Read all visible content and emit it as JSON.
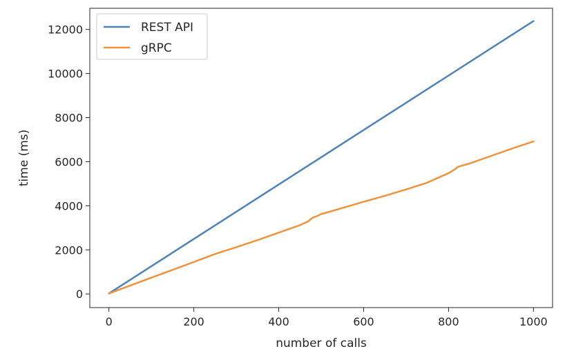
{
  "chart_data": {
    "type": "line",
    "title": "",
    "xlabel": "number of calls",
    "ylabel": "time (ms)",
    "xlim": [
      -45,
      1045
    ],
    "ylim": [
      -620,
      12960
    ],
    "xticks": [
      0,
      200,
      400,
      600,
      800,
      1000
    ],
    "yticks": [
      0,
      2000,
      4000,
      6000,
      8000,
      10000,
      12000
    ],
    "grid": false,
    "legend_position": "top-left",
    "series": [
      {
        "name": "REST API",
        "color": "#4c82b9",
        "x": [
          0,
          1000
        ],
        "y": [
          20,
          12380
        ]
      },
      {
        "name": "gRPC",
        "color": "#f0913b",
        "x": [
          0,
          50,
          100,
          150,
          200,
          250,
          300,
          350,
          400,
          450,
          470,
          480,
          490,
          500,
          550,
          600,
          650,
          700,
          750,
          800,
          815,
          822,
          850,
          900,
          950,
          1000
        ],
        "y": [
          20,
          380,
          740,
          1090,
          1450,
          1810,
          2120,
          2440,
          2780,
          3120,
          3300,
          3460,
          3530,
          3620,
          3900,
          4180,
          4450,
          4740,
          5050,
          5480,
          5660,
          5770,
          5920,
          6260,
          6600,
          6920
        ]
      }
    ]
  }
}
